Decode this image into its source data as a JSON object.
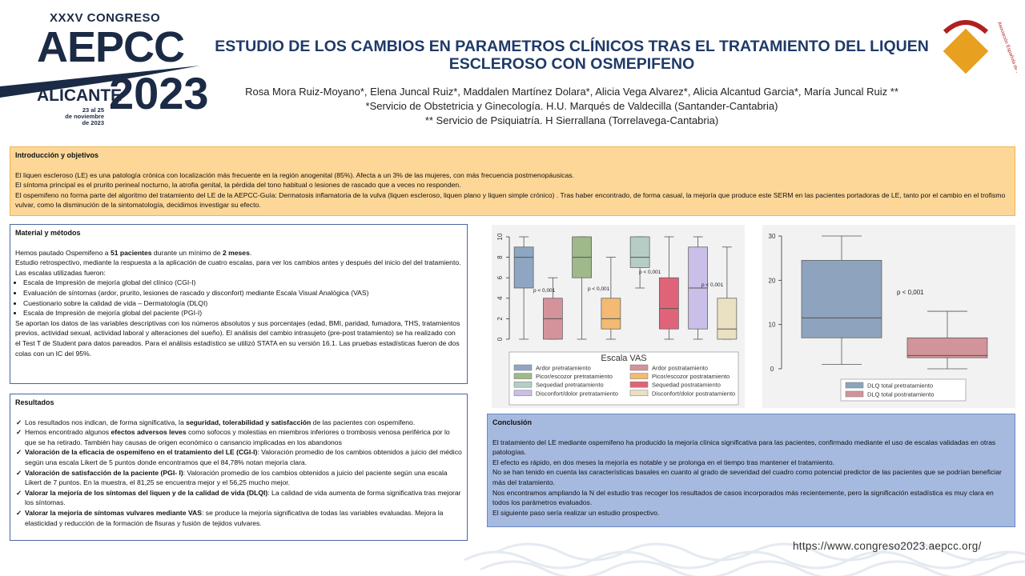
{
  "header": {
    "congress": "XXXV CONGRESO",
    "brand": "AEPCC",
    "city": "ALICANTE",
    "year": "2023",
    "dates": [
      "23 al 25",
      "de noviembre",
      "de 2023"
    ],
    "title": "ESTUDIO DE LOS CAMBIOS EN PARAMETROS CLÍNICOS TRAS EL TRATAMIENTO DEL LIQUEN ESCLEROSO CON OSMEPIFENO",
    "authors": "Rosa Mora Ruiz-Moyano*, Elena Juncal Ruiz*, Maddalen Martínez Dolara*, Alicia Vega Alvarez*, Alicia Alcantud Garcia*, María Juncal Ruiz **",
    "affiliations": [
      "*Servicio de Obstetricia y Ginecología. H.U. Marqués de Valdecilla (Santander-Cantabria)",
      "** Servicio de Psiquiatría. H Sierrallana (Torrelavega-Cantabria)"
    ],
    "logo_text": "Asociación Española de Patología Cervical y Colposcopia"
  },
  "intro": {
    "heading": "Introducción y objetivos",
    "paragraphs": [
      "El liquen escleroso (LE) es una patología crónica con localización más frecuente en la región anogenital (85%). Afecta a un 3% de las mujeres, con más frecuencia postmenopáusicas.",
      "El síntoma principal es el prurito perineal nocturno, la atrofia genital, la pérdida del tono habitual o lesiones de rascado que a veces no responden.",
      "El ospemifeno no forma parte del algoritmo del tratamiento del LE de la AEPCC-Guía: Dermatosis inflamatoria de la vulva (liquen escleroso, liquen plano y liquen simple crónico) . Tras haber encontrado, de forma casual, la mejoría que produce este SERM en las pacientes portadoras de LE, tanto por el cambio en el trofismo vulvar, como la disminución de la sintomatología, decidimos investigar su efecto."
    ]
  },
  "methods": {
    "heading": "Material y métodos",
    "line1": [
      "Hemos  pautado Ospemifeno a ",
      "51 pacientes",
      " durante un mínimo de ",
      "2 meses",
      "."
    ],
    "line2": "Estudio retrospectivo, mediante la respuesta a la aplicación de cuatro escalas, para ver los cambios antes y después del inicio del del tratamiento.",
    "line3": "Las escalas utilizadas fueron:",
    "scales": [
      "Escala de Impresión de mejoría global del clínico (CGI-I)",
      "Evaluación de síntomas (ardor, prurito, lesiones de rascado y disconfort) mediante Escala Visual Analógica (VAS)",
      "Cuestionario sobre la calidad de vida – Dermatología (DLQI)",
      "Escala de Impresión de mejoría global del paciente (PGI-I)"
    ],
    "line4": "Se aportan los datos de las variables descriptivas con los números absolutos y sus porcentajes  (edad, BMI, paridad, fumadora, THS, tratamientos previos, actividad sexual, actividad laboral y alteraciones del sueño). El análisis del cambio intrasujeto (pre-post tratamiento) se ha realizado con el Test T de Student para datos pareados. Para el análisis estadístico se utilizó STATA en su versión 16.1. Las pruebas estadísticas fueron de dos colas con un IC del 95%."
  },
  "results": {
    "heading": "Resultados",
    "items": [
      {
        "text": "Los resultados nos indican, de forma significativa, la ",
        "bold": "seguridad, tolerabilidad y satisfacción",
        "rest": " de las pacientes con ospemifeno."
      },
      {
        "text": "Hemos encontrado algunos ",
        "bold": "efectos adversos leves",
        "rest": " como sofocos y molestias en miembros inferiores o trombosis venosa periférica por lo que se ha retirado. También hay causas de origen económico o cansancio implicadas en los abandonos"
      },
      {
        "bold": "Valoración de la eficacia de ospemifeno en el tratamiento del LE (CGI-I)",
        "rest": ": Valoración promedio de los cambios obtenidos a juicio del médico según una escala Likert de 5 puntos donde encontramos que el 84,78% notan mejoría clara."
      },
      {
        "bold": "Valoración de satisfacción de la paciente (PGI- I)",
        "rest": ": Valoración promedio de los cambios obtenidos a juicio del paciente según una escala Likert de 7 puntos. En la muestra, el 81,25 se encuentra mejor y el 56,25 mucho mejor."
      },
      {
        "bold": "Valorar la mejoría de los síntomas del liquen y de la calidad de vida (DLQI)",
        "rest": ":  La calidad de vida aumenta de forma significativa tras mejorar los síntomas."
      },
      {
        "bold": "Valorar la mejoría de síntomas vulvares mediante VAS",
        "rest": ": se produce la mejoría significativa de todas las variables evaluadas. Mejora la elasticidad y reducción de la formación de fisuras y fusión de tejidos vulvares."
      }
    ]
  },
  "conclusion": {
    "heading": "Conclusión",
    "paragraphs": [
      "El tratamiento del LE mediante ospemifeno ha producido la mejoría clínica significativa para las pacientes, confirmado mediante el uso de escalas validadas en otras patologías.",
      "El efecto es rápido, en dos meses la mejoría es notable y se prolonga en el tiempo tras mantener el tratamiento.",
      "No se han tenido en cuenta las características basales en cuanto al grado de severidad del cuadro como potencial predictor de las pacientes que se podrían beneficiar más del tratamiento.",
      "Nos encontramos ampliando la N del estudio tras recoger los resultados de casos incorporados más recientemente, pero la significación estadística es muy clara en todos los parámetros evaluados.",
      "El siguiente paso sería realizar un estudio prospectivo."
    ]
  },
  "url": "https://www.congreso2023.aepcc.org/",
  "chart_data": [
    {
      "type": "box",
      "legend_title": "Escala VAS",
      "ylim": [
        0,
        10
      ],
      "yticks": [
        0,
        2,
        4,
        6,
        8,
        10
      ],
      "annotations": [
        "p < 0,001",
        "p < 0,001",
        "p < 0,001",
        "p < 0,001"
      ],
      "series": [
        {
          "name": "Ardor pretratamiento",
          "color": "#8fa6c2",
          "min": 0,
          "q1": 5,
          "median": 8,
          "q3": 9,
          "max": 10
        },
        {
          "name": "Ardor postratamiento",
          "color": "#d4939b",
          "min": 0,
          "q1": 0,
          "median": 2,
          "q3": 4,
          "max": 6
        },
        {
          "name": "Picor/escozor pretratamiento",
          "color": "#9fb98b",
          "min": 0,
          "q1": 6,
          "median": 8,
          "q3": 10,
          "max": 10
        },
        {
          "name": "Picor/escozor postratamiento",
          "color": "#f2ba72",
          "min": 0,
          "q1": 1,
          "median": 2,
          "q3": 4,
          "max": 8
        },
        {
          "name": "Sequedad pretratamiento",
          "color": "#b6cdc5",
          "min": 5,
          "q1": 7,
          "median": 8,
          "q3": 10,
          "max": 10
        },
        {
          "name": "Sequedad postratamiento",
          "color": "#e06479",
          "min": 0,
          "q1": 1,
          "median": 3,
          "q3": 6,
          "max": 10
        },
        {
          "name": "Disconfort/dolor pretratamiento",
          "color": "#c9bfe8",
          "min": 0,
          "q1": 1,
          "median": 5,
          "q3": 9,
          "max": 10
        },
        {
          "name": "Disconfort/dolor postratamiento",
          "color": "#e9e1c2",
          "min": 0,
          "q1": 0,
          "median": 1,
          "q3": 4,
          "max": 9
        }
      ]
    },
    {
      "type": "box",
      "ylim": [
        0,
        30
      ],
      "yticks": [
        0,
        10,
        20,
        30
      ],
      "annotations": [
        "p < 0,001"
      ],
      "series": [
        {
          "name": "DLQ total pretratamiento",
          "color": "#8ea3bd",
          "min": 1,
          "q1": 7,
          "median": 11.5,
          "q3": 24.5,
          "max": 30
        },
        {
          "name": "DLQ total postratamiento",
          "color": "#d1949a",
          "min": 0,
          "q1": 2.5,
          "median": 3,
          "q3": 7,
          "max": 13
        }
      ]
    }
  ]
}
